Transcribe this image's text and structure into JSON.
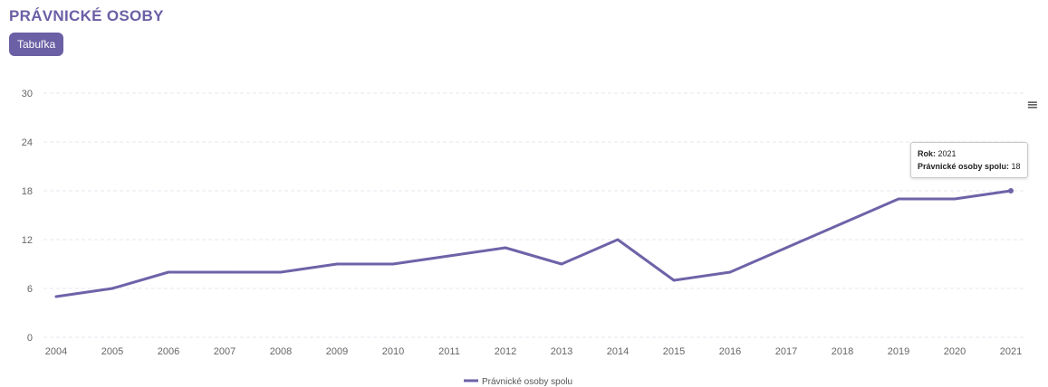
{
  "header": {
    "title": "PRÁVNICKÉ OSOBY",
    "tab_label": "Tabuľka"
  },
  "menu": {
    "icon": "hamburger-menu-icon",
    "glyph": "≡"
  },
  "tooltip": {
    "year_label": "Rok:",
    "year_value": "2021",
    "series_label": "Právnické osoby spolu:",
    "series_value": "18"
  },
  "colors": {
    "accent": "#6b5fa5",
    "line": "#6e63a8",
    "grid": "#e8e6ef",
    "axis_text": "#666666"
  },
  "chart_data": {
    "type": "line",
    "title": "PRÁVNICKÉ OSOBY",
    "xlabel": "",
    "ylabel": "",
    "categories": [
      "2004",
      "2005",
      "2006",
      "2007",
      "2008",
      "2009",
      "2010",
      "2011",
      "2012",
      "2013",
      "2014",
      "2015",
      "2016",
      "2017",
      "2018",
      "2019",
      "2020",
      "2021"
    ],
    "series": [
      {
        "name": "Právnické osoby spolu",
        "values": [
          5,
          6,
          8,
          8,
          8,
          9,
          9,
          10,
          11,
          9,
          12,
          7,
          8,
          11,
          14,
          17,
          17,
          18
        ]
      }
    ],
    "ylim": [
      0,
      30
    ],
    "yticks": [
      "0",
      "6",
      "12",
      "18",
      "24",
      "30"
    ],
    "grid": true,
    "legend": "bottom-center"
  }
}
